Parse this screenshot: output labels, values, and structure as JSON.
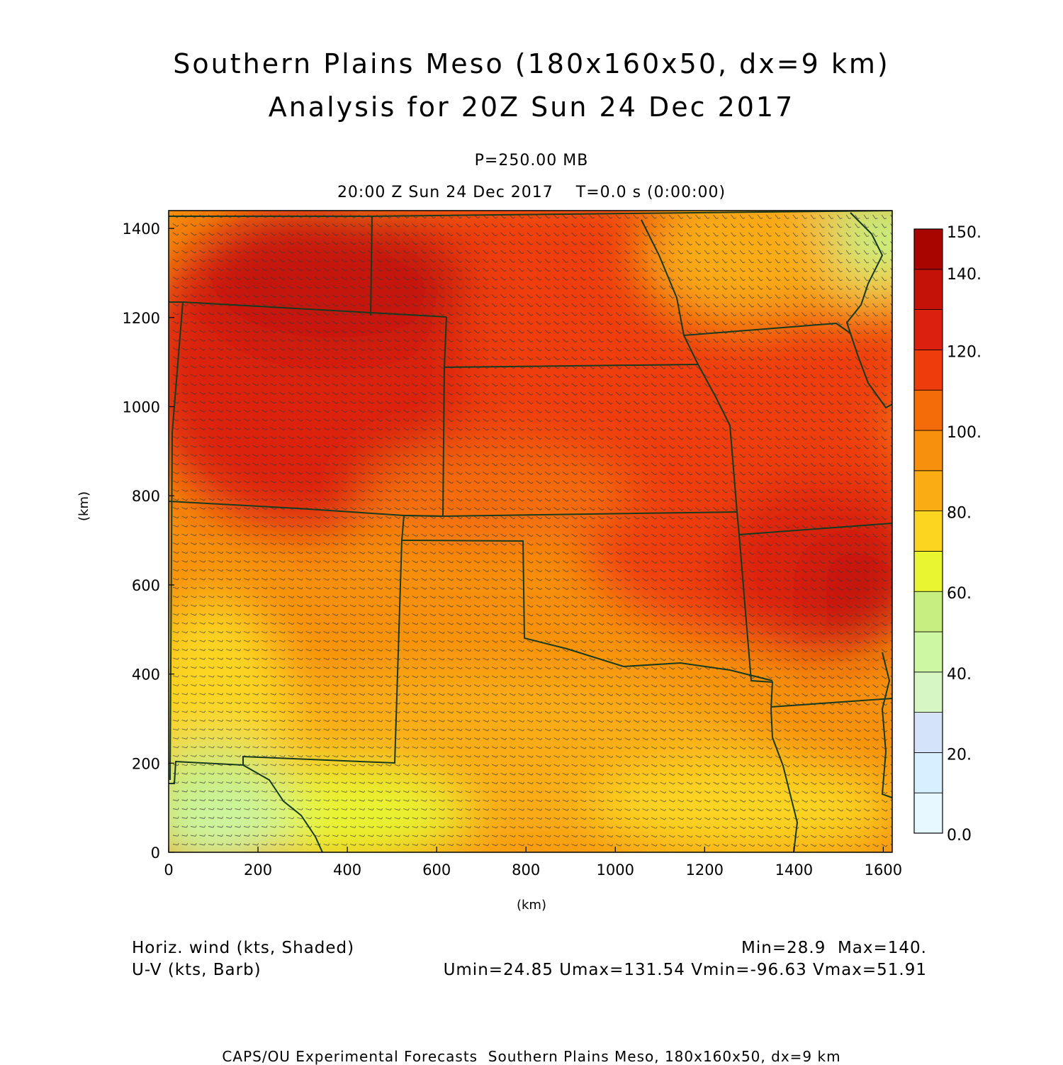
{
  "title": {
    "line1": "Southern Plains Meso (180x160x50, dx=9 km)",
    "line2": "Analysis for 20Z Sun 24 Dec 2017"
  },
  "subtitle": {
    "level": "P=250.00 MB",
    "valid": "20:00 Z Sun 24 Dec 2017    T=0.0 s (0:00:00)"
  },
  "axes": {
    "x_label": "(km)",
    "y_label": "(km)",
    "x_ticks": [
      "0",
      "200",
      "400",
      "600",
      "800",
      "1000",
      "1200",
      "1400",
      "1600"
    ],
    "y_ticks": [
      "0",
      "200",
      "400",
      "600",
      "800",
      "1000",
      "1200",
      "1400"
    ],
    "x_range_km": [
      0,
      1620
    ],
    "y_range_km": [
      0,
      1440
    ]
  },
  "colorbar": {
    "labels": [
      "0.0",
      "20.",
      "40.",
      "60.",
      "80.",
      "100.",
      "120.",
      "140.",
      "150."
    ],
    "bins": [
      {
        "lo": 0,
        "hi": 10,
        "color": "#e8f8ff"
      },
      {
        "lo": 10,
        "hi": 20,
        "color": "#d8efff"
      },
      {
        "lo": 20,
        "hi": 30,
        "color": "#d4e2fa"
      },
      {
        "lo": 30,
        "hi": 40,
        "color": "#d6f7c4"
      },
      {
        "lo": 40,
        "hi": 50,
        "color": "#cef7a4"
      },
      {
        "lo": 50,
        "hi": 60,
        "color": "#c6ee80"
      },
      {
        "lo": 60,
        "hi": 70,
        "color": "#e8f530"
      },
      {
        "lo": 70,
        "hi": 80,
        "color": "#fbd520"
      },
      {
        "lo": 80,
        "hi": 90,
        "color": "#f9ac14"
      },
      {
        "lo": 90,
        "hi": 100,
        "color": "#f7900c"
      },
      {
        "lo": 100,
        "hi": 110,
        "color": "#f46c0a"
      },
      {
        "lo": 110,
        "hi": 120,
        "color": "#ef3c0c"
      },
      {
        "lo": 120,
        "hi": 130,
        "color": "#dc2010"
      },
      {
        "lo": 130,
        "hi": 140,
        "color": "#c41208"
      },
      {
        "lo": 140,
        "hi": 150,
        "color": "#a80400"
      }
    ]
  },
  "field": {
    "variable": "Horiz. wind (kts, Shaded)",
    "vector": "U-V (kts, Barb)",
    "minmax": "Min=28.9  Max=140.",
    "uv_stats": "Umin=24.85 Umax=131.54 Vmin=-96.63 Vmax=51.91"
  },
  "footer": "CAPS/OU Experimental Forecasts  Southern Plains Meso, 180x160x50, dx=9 km",
  "colors": {
    "borders": "#173a1e",
    "barbs": "#3a3a3a"
  }
}
